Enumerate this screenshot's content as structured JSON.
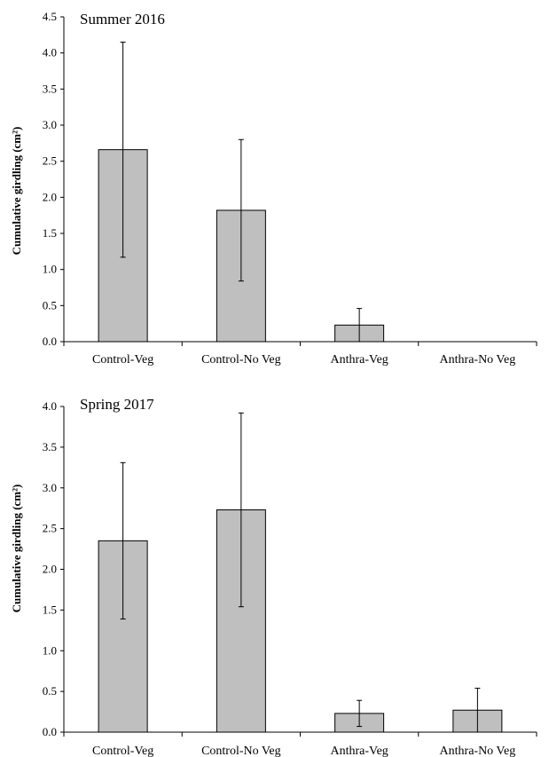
{
  "chart_data": [
    {
      "type": "bar",
      "title": "Summer 2016",
      "ylabel": "Cumulative girdling (cm²)",
      "categories": [
        "Control-Veg",
        "Control-No Veg",
        "Anthra-Veg",
        "Anthra-No Veg"
      ],
      "values": [
        2.66,
        1.82,
        0.23,
        0.0
      ],
      "error": [
        1.49,
        0.98,
        0.23,
        0.0
      ],
      "ylim": [
        0,
        4.5
      ],
      "yticks": [
        "0.0",
        "0.5",
        "1.0",
        "1.5",
        "2.0",
        "2.5",
        "3.0",
        "3.5",
        "4.0",
        "4.5"
      ],
      "bar_color": "#bfbfbf",
      "grid": false
    },
    {
      "type": "bar",
      "title": "Spring 2017",
      "ylabel": "Cumulative girdling (cm²)",
      "categories": [
        "Control-Veg",
        "Control-No Veg",
        "Anthra-Veg",
        "Anthra-No Veg"
      ],
      "values": [
        2.35,
        2.73,
        0.23,
        0.27
      ],
      "error": [
        0.96,
        1.19,
        0.16,
        0.27
      ],
      "ylim": [
        0,
        4.0
      ],
      "yticks": [
        "0.0",
        "0.5",
        "1.0",
        "1.5",
        "2.0",
        "2.5",
        "3.0",
        "3.5",
        "4.0"
      ],
      "bar_color": "#bfbfbf",
      "grid": false
    }
  ]
}
